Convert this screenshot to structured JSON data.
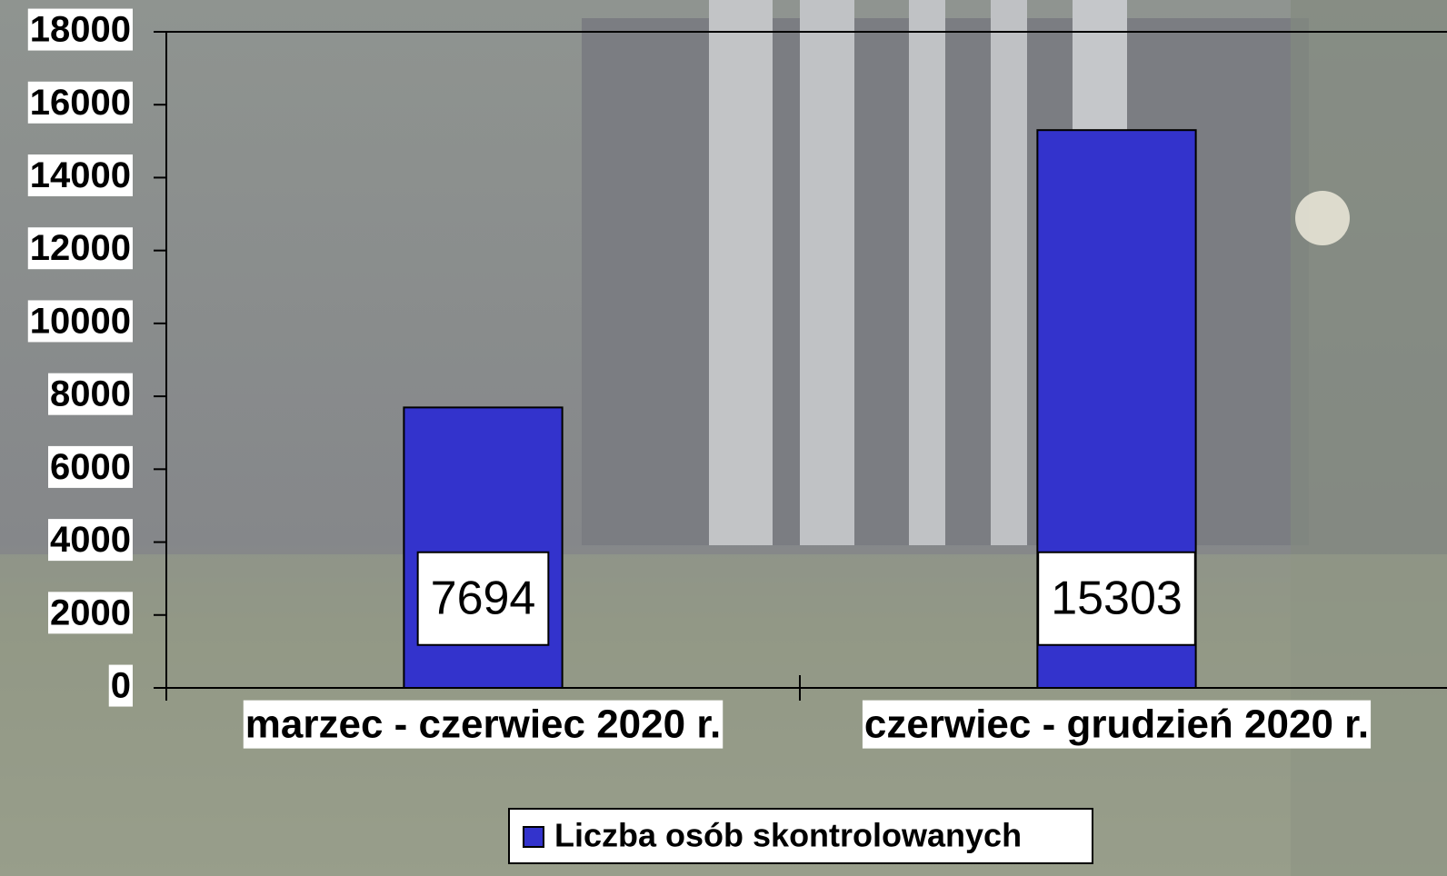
{
  "chart_data": {
    "type": "bar",
    "categories": [
      "marzec - czerwiec 2020 r.",
      "czerwiec - grudzień 2020 r."
    ],
    "series": [
      {
        "name": "Liczba osób skontrolowanych",
        "color": "#3333cc",
        "values": [
          7694,
          15303
        ]
      }
    ],
    "ylim": [
      0,
      18000
    ],
    "yticks": [
      0,
      2000,
      4000,
      6000,
      8000,
      10000,
      12000,
      14000,
      16000,
      18000
    ],
    "grid": false,
    "legend": "bottom"
  }
}
